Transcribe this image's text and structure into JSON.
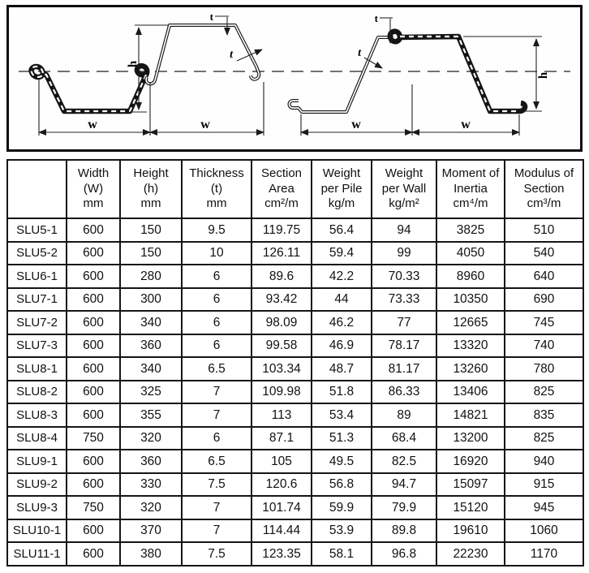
{
  "diagram": {
    "labels": {
      "w": "w",
      "h": "h",
      "t": "t"
    }
  },
  "table": {
    "headers": [
      "",
      "Width\n(W)\nmm",
      "Height\n(h)\nmm",
      "Thickness\n(t)\nmm",
      "Section\nArea\ncm²/m",
      "Weight\nper Pile\nkg/m",
      "Weight\nper Wall\nkg/m²",
      "Moment of\nInertia\ncm⁴/m",
      "Modulus of\nSection\ncm³/m"
    ],
    "rows": [
      [
        "SLU5-1",
        "600",
        "150",
        "9.5",
        "119.75",
        "56.4",
        "94",
        "3825",
        "510"
      ],
      [
        "SLU5-2",
        "600",
        "150",
        "10",
        "126.11",
        "59.4",
        "99",
        "4050",
        "540"
      ],
      [
        "SLU6-1",
        "600",
        "280",
        "6",
        "89.6",
        "42.2",
        "70.33",
        "8960",
        "640"
      ],
      [
        "SLU7-1",
        "600",
        "300",
        "6",
        "93.42",
        "44",
        "73.33",
        "10350",
        "690"
      ],
      [
        "SLU7-2",
        "600",
        "340",
        "6",
        "98.09",
        "46.2",
        "77",
        "12665",
        "745"
      ],
      [
        "SLU7-3",
        "600",
        "360",
        "6",
        "99.58",
        "46.9",
        "78.17",
        "13320",
        "740"
      ],
      [
        "SLU8-1",
        "600",
        "340",
        "6.5",
        "103.34",
        "48.7",
        "81.17",
        "13260",
        "780"
      ],
      [
        "SLU8-2",
        "600",
        "325",
        "7",
        "109.98",
        "51.8",
        "86.33",
        "13406",
        "825"
      ],
      [
        "SLU8-3",
        "600",
        "355",
        "7",
        "113",
        "53.4",
        "89",
        "14821",
        "835"
      ],
      [
        "SLU8-4",
        "750",
        "320",
        "6",
        "87.1",
        "51.3",
        "68.4",
        "13200",
        "825"
      ],
      [
        "SLU9-1",
        "600",
        "360",
        "6.5",
        "105",
        "49.5",
        "82.5",
        "16920",
        "940"
      ],
      [
        "SLU9-2",
        "600",
        "330",
        "7.5",
        "120.6",
        "56.8",
        "94.7",
        "15097",
        "915"
      ],
      [
        "SLU9-3",
        "750",
        "320",
        "7",
        "101.74",
        "59.9",
        "79.9",
        "15120",
        "945"
      ],
      [
        "SLU10-1",
        "600",
        "370",
        "7",
        "114.44",
        "53.9",
        "89.8",
        "19610",
        "1060"
      ],
      [
        "SLU11-1",
        "600",
        "380",
        "7.5",
        "123.35",
        "58.1",
        "96.8",
        "22230",
        "1170"
      ]
    ]
  }
}
